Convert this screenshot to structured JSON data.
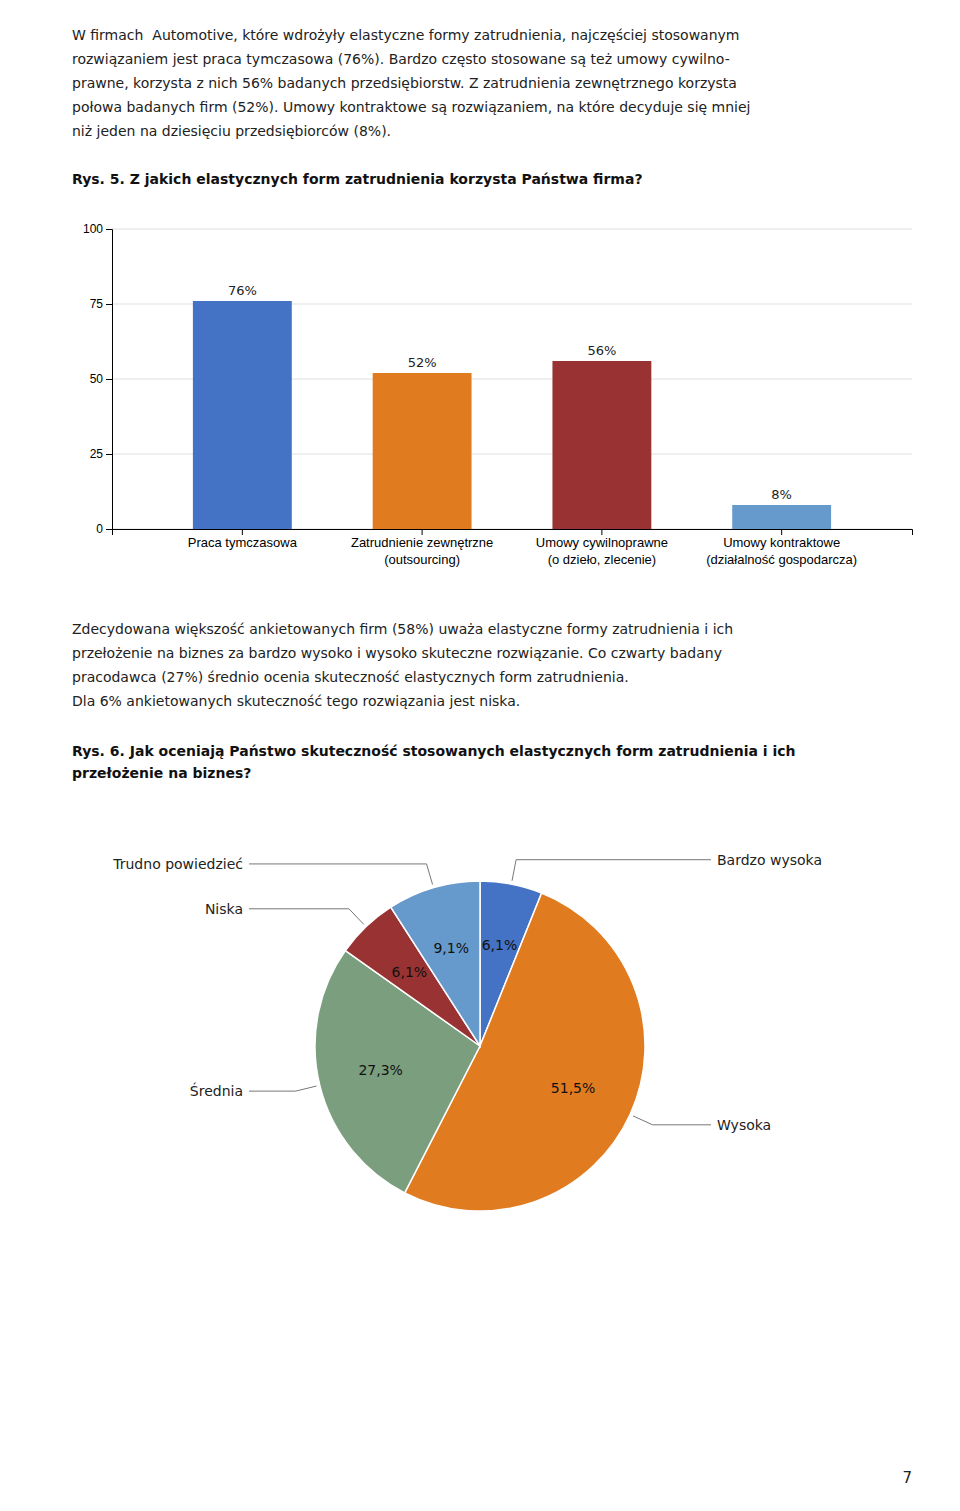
{
  "page_number": "7",
  "chart_data": [
    {
      "type": "bar",
      "title": "Rys. 5. Z jakich elastycznych form zatrudnienia korzysta Państwa firma?",
      "annotations": [
        "W firmach  Automotive, które wdrożyły elastyczne formy zatrudnienia, najczęściej stosowanym",
        "rozwiązaniem jest praca tymczasowa (76%). Bardzo często stosowane są też umowy cywilno-",
        "prawne, korzysta z nich 56% badanych przedsiębiorstw. Z zatrudnienia zewnętrznego korzysta",
        "połowa badanych firm (52%). Umowy kontraktowe są rozwiązaniem, na które decyduje się mniej",
        "niż jeden na dziesięciu przedsiębiorców (8%)."
      ],
      "categories": [
        "Praca tymczasowa",
        "Zatrudnienie zewnętrzne\n(outsourcing)",
        "Umowy cywilnoprawne\n(o dzieło, zlecenie)",
        "Umowy kontraktowe\n(działalność gospodarcza)"
      ],
      "values": [
        76,
        52,
        56,
        8
      ],
      "value_labels": [
        "76%",
        "52%",
        "56%",
        "8%"
      ],
      "colors": [
        "#4472C4",
        "#E07B20",
        "#993333",
        "#6699CC"
      ],
      "ylim": [
        0,
        100
      ],
      "yticks": [
        0,
        25,
        50,
        75,
        100
      ],
      "grid": true,
      "data_labels": true
    },
    {
      "type": "pie",
      "title": "Rys. 6. Jak oceniają Państwo skuteczność stosowanych elastycznych form zatrudnienia i ich\nprzełożenie na biznes?",
      "annotations": [
        "Zdecydowana większość ankietowanych firm (58%) uważa elastyczne formy zatrudnienia i ich",
        "przełożenie na biznes za bardzo wysoko i wysoko skuteczne rozwiązanie. Co czwarty badany",
        "pracodawca (27%) średnio ocenia skuteczność elastycznych form zatrudnienia.",
        "Dla 6% ankietowanych skuteczność tego rozwiązania jest niska."
      ],
      "categories": [
        "Bardzo wysoka",
        "Wysoka",
        "Średnia",
        "Niska",
        "Trudno powiedzieć"
      ],
      "values": [
        6.1,
        51.5,
        27.3,
        6.1,
        9.1
      ],
      "value_labels": [
        "6,1%",
        "51,5%",
        "27,3%",
        "6,1%",
        "9,1%"
      ],
      "colors": [
        "#4472C4",
        "#E07B20",
        "#7A9E7E",
        "#993333",
        "#6699CC"
      ],
      "data_labels": true
    }
  ]
}
